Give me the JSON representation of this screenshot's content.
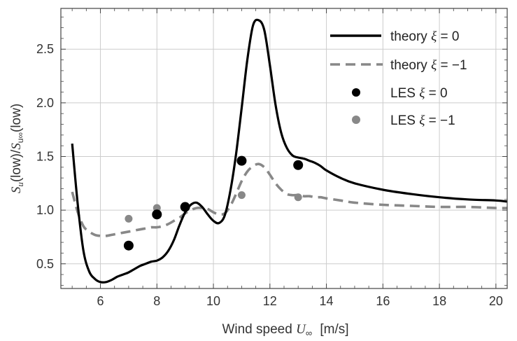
{
  "chart_data": {
    "type": "line",
    "xlabel_text": "Wind speed",
    "xlabel_var": "U",
    "xlabel_sub": "∞",
    "xlabel_unit": "[m/s]",
    "ylabel_s1": "S",
    "ylabel_sub1": "u",
    "ylabel_mid": "(low)/",
    "ylabel_s2": "S",
    "ylabel_sub2": "u∞",
    "ylabel_end": "(low)",
    "xlim": [
      4.6,
      20.4
    ],
    "ylim": [
      0.27,
      2.88
    ],
    "xticks": [
      "6",
      "8",
      "10",
      "12",
      "14",
      "16",
      "18",
      "20"
    ],
    "yticks": [
      "0.5",
      "1.0",
      "1.5",
      "2.0",
      "2.5"
    ],
    "grid": true,
    "legend_position": "top-right",
    "colors": {
      "theory0": "#000000",
      "theory1": "#888888",
      "les0": "#000000",
      "les1": "#888888",
      "grid": "#cccccc",
      "frame": "#444444"
    },
    "legend": [
      {
        "prefix": "theory ",
        "var": "ξ",
        "suffix": " = 0",
        "kind": "solid"
      },
      {
        "prefix": "theory ",
        "var": "ξ",
        "suffix": " = −1",
        "kind": "dashed"
      },
      {
        "prefix": "LES ",
        "var": "ξ",
        "suffix": " = 0",
        "kind": "dot-black"
      },
      {
        "prefix": "LES ",
        "var": "ξ",
        "suffix": " = −1",
        "kind": "dot-gray"
      }
    ],
    "series": [
      {
        "name": "theory ξ = 0",
        "style": "solid",
        "x": [
          5.0,
          5.2,
          5.4,
          5.6,
          5.8,
          6.0,
          6.2,
          6.4,
          6.6,
          6.8,
          7.0,
          7.2,
          7.4,
          7.6,
          7.8,
          8.0,
          8.2,
          8.4,
          8.6,
          8.8,
          9.0,
          9.2,
          9.4,
          9.6,
          9.8,
          10.0,
          10.2,
          10.4,
          10.6,
          10.8,
          11.0,
          11.2,
          11.4,
          11.6,
          11.8,
          12.0,
          12.2,
          12.4,
          12.6,
          12.8,
          13.0,
          13.2,
          13.4,
          13.6,
          13.8,
          14.0,
          14.5,
          15.0,
          16.0,
          17.0,
          18.0,
          19.0,
          20.0,
          20.4
        ],
        "y": [
          1.62,
          1.05,
          0.62,
          0.43,
          0.36,
          0.33,
          0.33,
          0.35,
          0.38,
          0.4,
          0.42,
          0.45,
          0.48,
          0.5,
          0.52,
          0.53,
          0.56,
          0.62,
          0.72,
          0.86,
          0.98,
          1.05,
          1.07,
          1.03,
          0.96,
          0.9,
          0.88,
          0.95,
          1.18,
          1.52,
          1.95,
          2.4,
          2.72,
          2.77,
          2.68,
          2.35,
          1.98,
          1.72,
          1.58,
          1.51,
          1.49,
          1.48,
          1.46,
          1.44,
          1.41,
          1.37,
          1.3,
          1.25,
          1.19,
          1.15,
          1.12,
          1.1,
          1.09,
          1.08
        ]
      },
      {
        "name": "theory ξ = −1",
        "style": "dashed",
        "x": [
          5.0,
          5.2,
          5.4,
          5.6,
          5.8,
          6.0,
          6.2,
          6.4,
          6.6,
          6.8,
          7.0,
          7.2,
          7.4,
          7.6,
          7.8,
          8.0,
          8.2,
          8.4,
          8.6,
          8.8,
          9.0,
          9.2,
          9.4,
          9.6,
          9.8,
          10.0,
          10.2,
          10.4,
          10.6,
          10.8,
          11.0,
          11.2,
          11.4,
          11.6,
          11.8,
          12.0,
          12.2,
          12.4,
          12.6,
          12.8,
          13.0,
          13.2,
          13.4,
          13.6,
          13.8,
          14.0,
          14.5,
          15.0,
          16.0,
          17.0,
          18.0,
          19.0,
          20.0,
          20.4
        ],
        "y": [
          1.17,
          0.98,
          0.85,
          0.8,
          0.77,
          0.76,
          0.76,
          0.77,
          0.78,
          0.79,
          0.8,
          0.81,
          0.82,
          0.83,
          0.84,
          0.84,
          0.85,
          0.87,
          0.9,
          0.93,
          0.97,
          1.0,
          1.02,
          1.02,
          1.01,
          0.98,
          0.96,
          0.97,
          1.04,
          1.15,
          1.27,
          1.36,
          1.41,
          1.43,
          1.4,
          1.33,
          1.25,
          1.19,
          1.15,
          1.14,
          1.14,
          1.13,
          1.13,
          1.12,
          1.12,
          1.11,
          1.09,
          1.07,
          1.05,
          1.04,
          1.03,
          1.03,
          1.02,
          1.02
        ]
      },
      {
        "name": "LES ξ = 0",
        "style": "dot-black",
        "x": [
          7,
          8,
          9,
          11,
          13
        ],
        "y": [
          0.67,
          0.96,
          1.03,
          1.46,
          1.42
        ]
      },
      {
        "name": "LES ξ = −1",
        "style": "dot-gray",
        "x": [
          7,
          8,
          9,
          11,
          13
        ],
        "y": [
          0.92,
          1.02,
          1.03,
          1.14,
          1.12
        ]
      }
    ]
  }
}
